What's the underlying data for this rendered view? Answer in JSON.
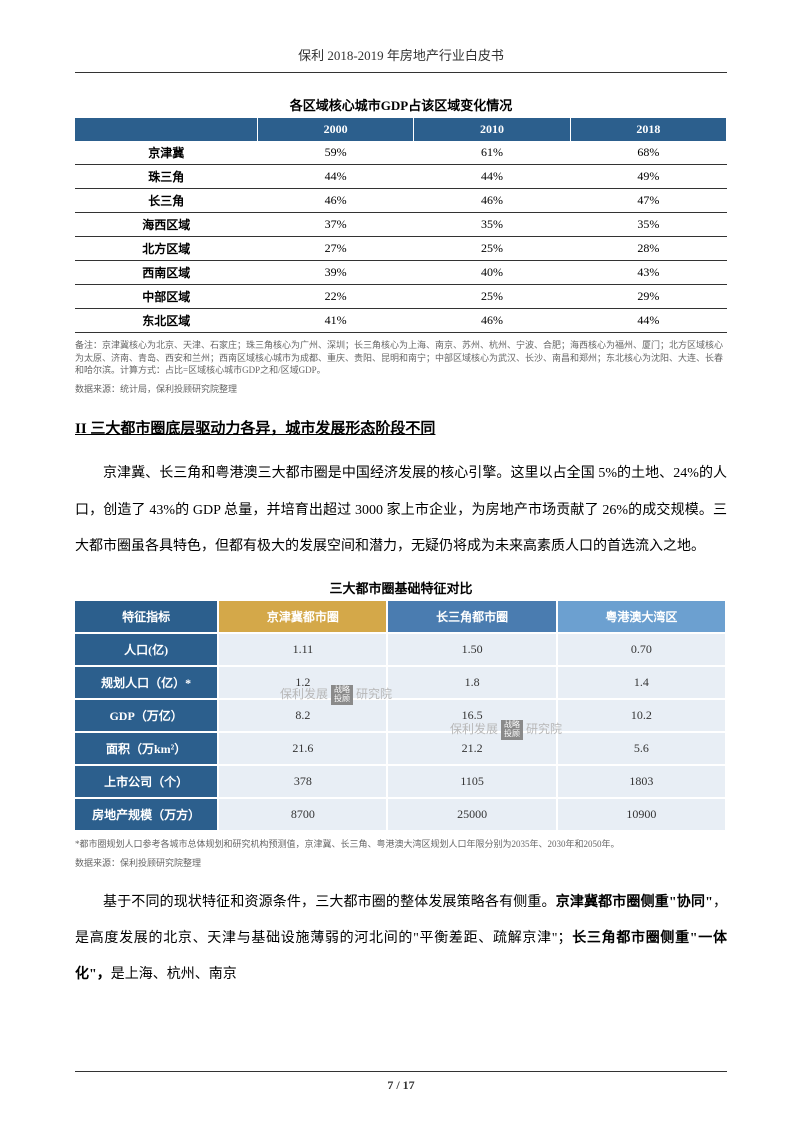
{
  "header": {
    "title": "保利 2018-2019 年房地产行业白皮书"
  },
  "table1": {
    "title": "各区域核心城市GDP占该区域变化情况",
    "columns": [
      "",
      "2000",
      "2010",
      "2018"
    ],
    "rows": [
      [
        "京津冀",
        "59%",
        "61%",
        "68%"
      ],
      [
        "珠三角",
        "44%",
        "44%",
        "49%"
      ],
      [
        "长三角",
        "46%",
        "46%",
        "47%"
      ],
      [
        "海西区域",
        "37%",
        "35%",
        "35%"
      ],
      [
        "北方区域",
        "27%",
        "25%",
        "28%"
      ],
      [
        "西南区域",
        "39%",
        "40%",
        "43%"
      ],
      [
        "中部区域",
        "22%",
        "25%",
        "29%"
      ],
      [
        "东北区域",
        "41%",
        "46%",
        "44%"
      ]
    ],
    "note1": "备注：京津冀核心为北京、天津、石家庄；珠三角核心为广州、深圳；长三角核心为上海、南京、苏州、杭州、宁波、合肥；海西核心为福州、厦门；北方区域核心为太原、济南、青岛、西安和兰州；西南区域核心城市为成都、重庆、贵阳、昆明和南宁；中部区域核心为武汉、长沙、南昌和郑州；东北核心为沈阳、大连、长春和哈尔滨。计算方式：占比=区域核心城市GDP之和/区域GDP。",
    "note2": "数据来源：统计局，保利投顾研究院整理",
    "header_bg": "#2c5f8d",
    "header_color": "#ffffff",
    "border_color": "#333333"
  },
  "section": {
    "heading": "II  三大都市圈底层驱动力各异，城市发展形态阶段不同"
  },
  "para1": "京津冀、长三角和粤港澳三大都市圈是中国经济发展的核心引擎。这里以占全国 5%的土地、24%的人口，创造了 43%的 GDP 总量，并培育出超过 3000 家上市企业，为房地产市场贡献了 26%的成交规模。三大都市圈虽各具特色，但都有极大的发展空间和潜力，无疑仍将成为未来高素质人口的首选流入之地。",
  "table2": {
    "title": "三大都市圈基础特征对比",
    "header_colors": [
      "#2c5f8d",
      "#d4a849",
      "#4a7cb0",
      "#6ca0d0"
    ],
    "columns": [
      "特征指标",
      "京津冀都市圈",
      "长三角都市圈",
      "粤港澳大湾区"
    ],
    "rows": [
      {
        "label": "人口(亿)",
        "values": [
          "1.11",
          "1.50",
          "0.70"
        ]
      },
      {
        "label": "规划人口（亿）*",
        "values": [
          "1.2",
          "1.8",
          "1.4"
        ]
      },
      {
        "label": "GDP（万亿）",
        "values": [
          "8.2",
          "16.5",
          "10.2"
        ]
      },
      {
        "label": "面积（万km²）",
        "values": [
          "21.6",
          "21.2",
          "5.6"
        ]
      },
      {
        "label": "上市公司（个）",
        "values": [
          "378",
          "1105",
          "1803"
        ]
      },
      {
        "label": "房地产规模（万方）",
        "values": [
          "8700",
          "25000",
          "10900"
        ]
      }
    ],
    "note1": "*都市圈规划人口参考各城市总体规划和研究机构预测值，京津冀、长三角、粤港澳大湾区规划人口年限分别为2035年、2030年和2050年。",
    "note2": "数据来源：保利投顾研究院整理",
    "label_bg": "#2c5f8d",
    "data_bg": "#e8eef5"
  },
  "para2_part1": "基于不同的现状特征和资源条件，三大都市圈的整体发展策略各有侧重。",
  "para2_bold1": "京津冀都市圈侧重\"协同\"",
  "para2_part2": "，是高度发展的北京、天津与基础设施薄弱的河北间的\"平衡差距、疏解京津\"；",
  "para2_bold2": "长三角都市圈侧重\"一体化\"，",
  "para2_part3": "是上海、杭州、南京",
  "watermark": {
    "text_prefix": "保利发展",
    "badge1": "战略",
    "badge2": "投顾",
    "text_suffix": "研究院"
  },
  "footer": {
    "page": "7 / 17"
  }
}
